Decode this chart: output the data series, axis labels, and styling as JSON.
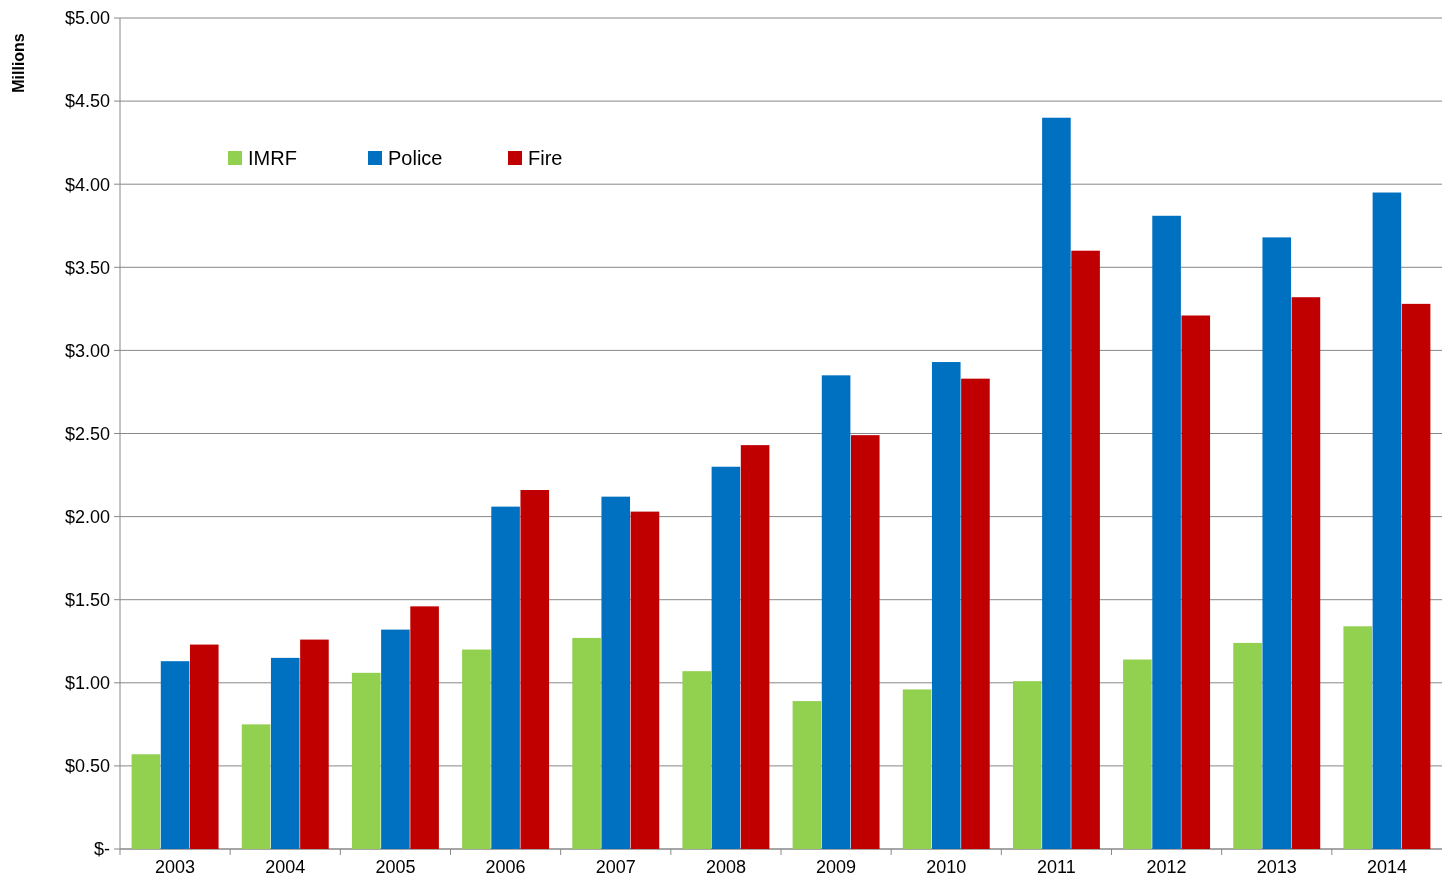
{
  "chart_data": {
    "type": "bar",
    "ylabel": "Millions",
    "categories": [
      "2003",
      "2004",
      "2005",
      "2006",
      "2007",
      "2008",
      "2009",
      "2010",
      "2011",
      "2012",
      "2013",
      "2014"
    ],
    "series": [
      {
        "name": "IMRF",
        "color": "#92d050",
        "values": [
          0.57,
          0.75,
          1.06,
          1.2,
          1.27,
          1.07,
          0.89,
          0.96,
          1.01,
          1.14,
          1.24,
          1.34
        ]
      },
      {
        "name": "Police",
        "color": "#0070c0",
        "values": [
          1.13,
          1.15,
          1.32,
          2.06,
          2.12,
          2.3,
          2.85,
          2.93,
          4.4,
          3.81,
          3.68,
          3.95
        ]
      },
      {
        "name": "Fire",
        "color": "#c00000",
        "values": [
          1.23,
          1.26,
          1.46,
          2.16,
          2.03,
          2.43,
          2.49,
          2.83,
          3.6,
          3.21,
          3.32,
          3.28
        ]
      }
    ],
    "ylim": [
      0,
      5
    ],
    "yticks": [
      {
        "value": 0,
        "label": "$-"
      },
      {
        "value": 0.5,
        "label": "$0.50"
      },
      {
        "value": 1,
        "label": "$1.00"
      },
      {
        "value": 1.5,
        "label": "$1.50"
      },
      {
        "value": 2,
        "label": "$2.00"
      },
      {
        "value": 2.5,
        "label": "$2.50"
      },
      {
        "value": 3,
        "label": "$3.00"
      },
      {
        "value": 3.5,
        "label": "$3.50"
      },
      {
        "value": 4,
        "label": "$4.00"
      },
      {
        "value": 4.5,
        "label": "$4.50"
      },
      {
        "value": 5,
        "label": "$5.00"
      }
    ],
    "grid": "y",
    "legend": "top left"
  }
}
